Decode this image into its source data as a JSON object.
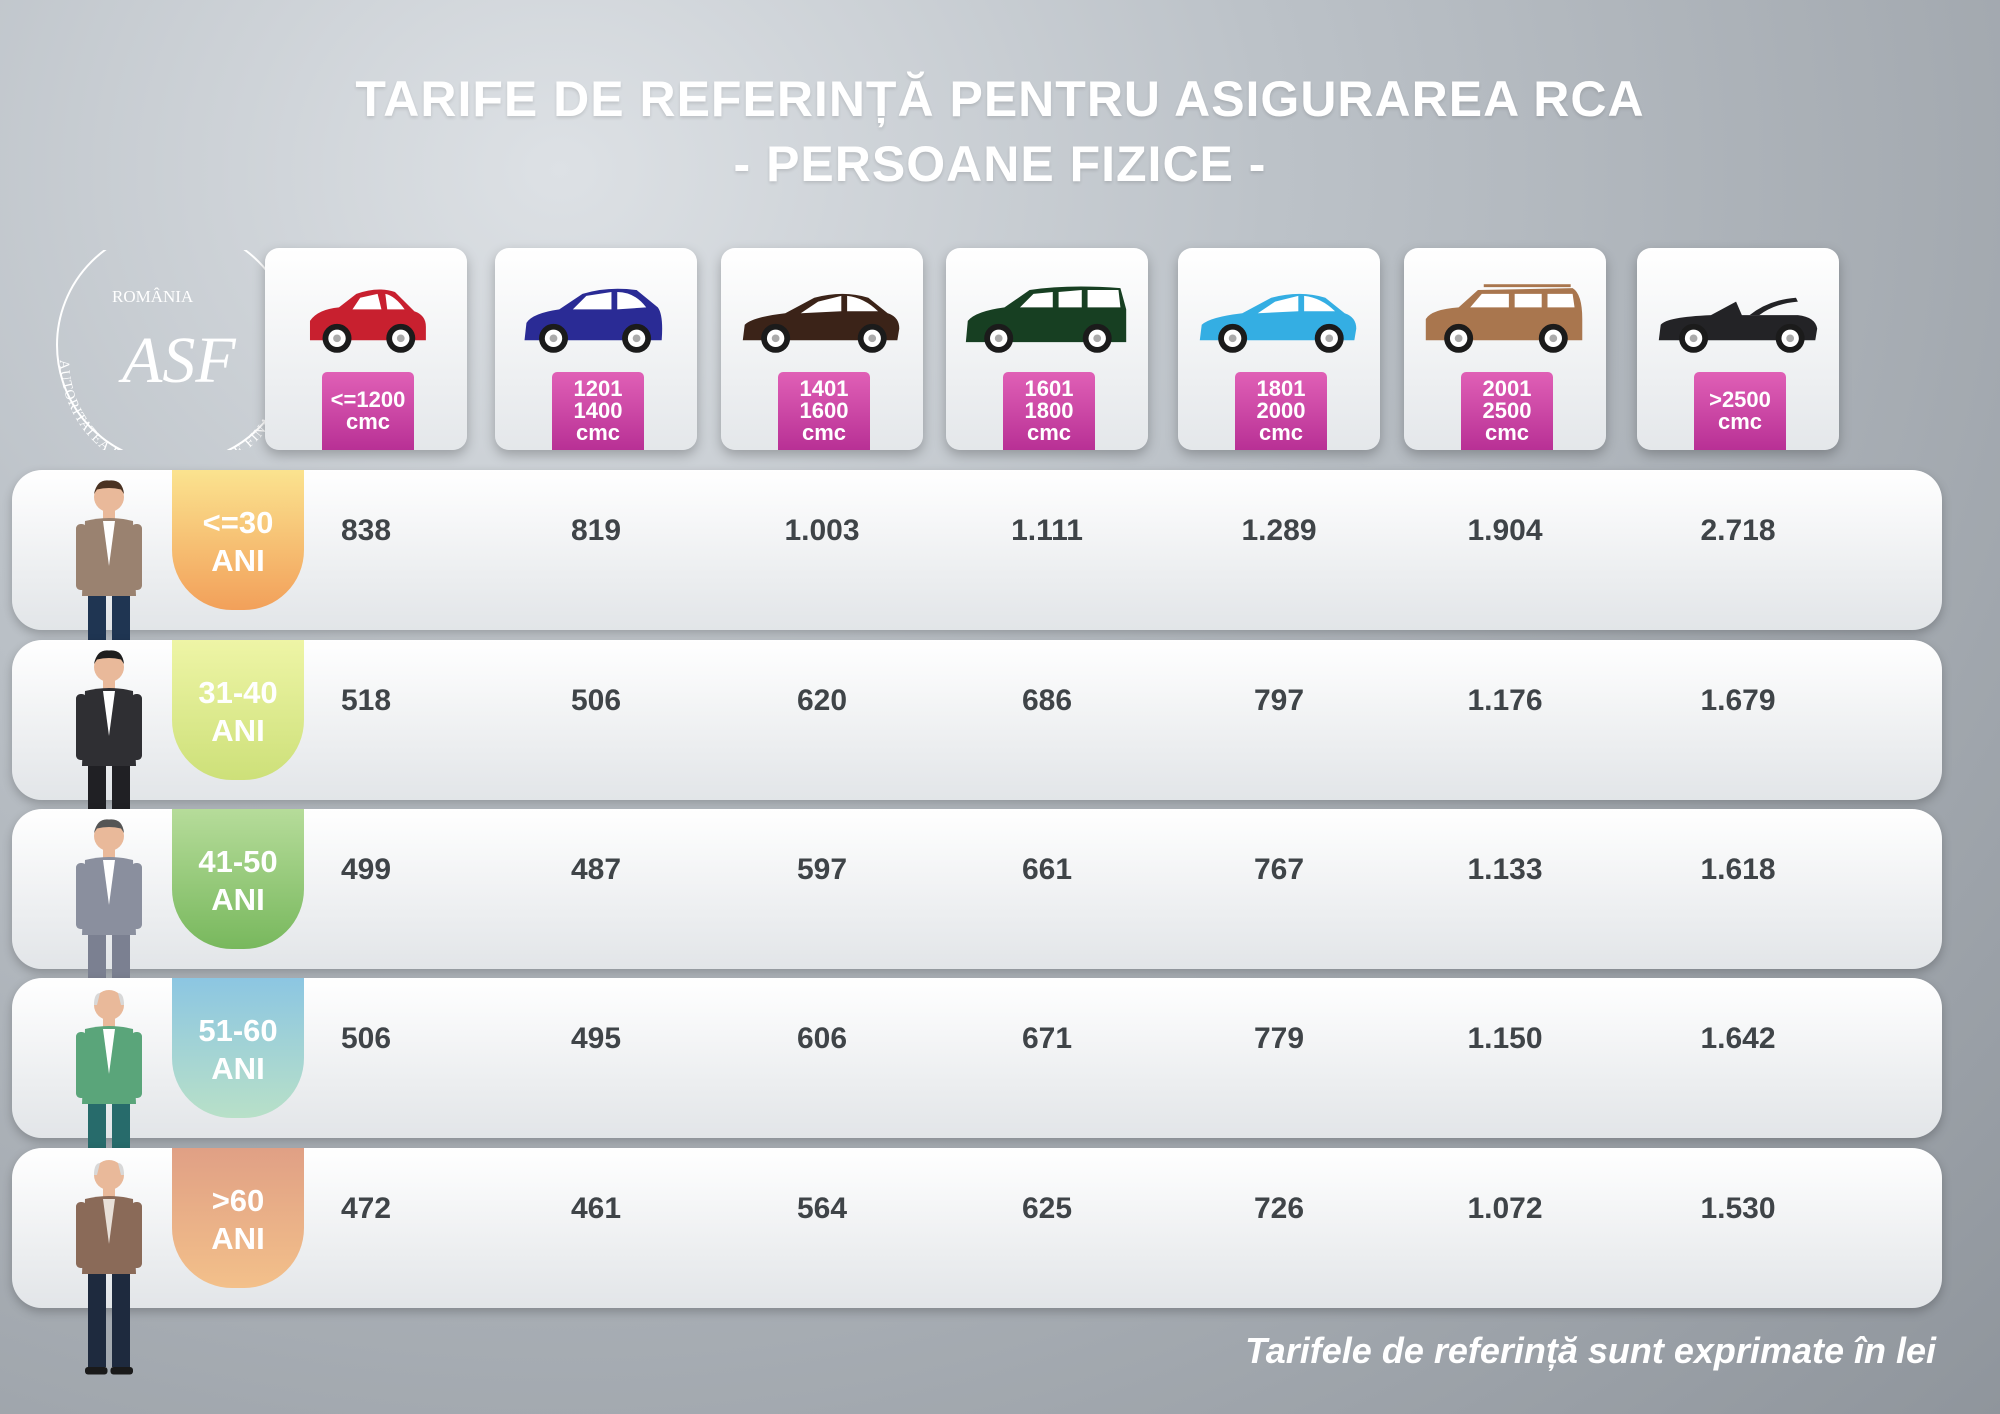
{
  "title": {
    "line1": "TARIFE DE REFERINȚĂ PENTRU ASIGURAREA RCA",
    "line2": "- PERSOANE FIZICE -"
  },
  "logo": {
    "top_text": "ROMÂNIA",
    "ring_text": "AUTORITATEA DE SUPRAVEGHERE FINANCIARĂ",
    "monogram": "ASF"
  },
  "chart_data": {
    "type": "table",
    "columns": [
      {
        "lines": [
          "<=1200",
          "cmc"
        ],
        "car_color": "#c8202f",
        "car_icon": "hatchback-small-icon"
      },
      {
        "lines": [
          "1201",
          "1400",
          "cmc"
        ],
        "car_color": "#2a2b95",
        "car_icon": "hatchback-icon"
      },
      {
        "lines": [
          "1401",
          "1600",
          "cmc"
        ],
        "car_color": "#3b2318",
        "car_icon": "sedan-icon"
      },
      {
        "lines": [
          "1601",
          "1800",
          "cmc"
        ],
        "car_color": "#173f22",
        "car_icon": "minivan-icon"
      },
      {
        "lines": [
          "1801",
          "2000",
          "cmc"
        ],
        "car_color": "#34aee3",
        "car_icon": "sedan-icon"
      },
      {
        "lines": [
          "2001",
          "2500",
          "cmc"
        ],
        "car_color": "#a9764e",
        "car_icon": "suv-icon"
      },
      {
        "lines": [
          ">2500",
          "cmc"
        ],
        "car_color": "#232326",
        "car_icon": "convertible-icon"
      }
    ],
    "rows": [
      {
        "age": [
          "<=30",
          "ANI"
        ],
        "values": [
          "838",
          "819",
          "1.003",
          "1.111",
          "1.289",
          "1.904",
          "2.718"
        ]
      },
      {
        "age": [
          "31-40",
          "ANI"
        ],
        "values": [
          "518",
          "506",
          "620",
          "686",
          "797",
          "1.176",
          "1.679"
        ]
      },
      {
        "age": [
          "41-50",
          "ANI"
        ],
        "values": [
          "499",
          "487",
          "597",
          "661",
          "767",
          "1.133",
          "1.618"
        ]
      },
      {
        "age": [
          "51-60",
          "ANI"
        ],
        "values": [
          "506",
          "495",
          "606",
          "671",
          "779",
          "1.150",
          "1.642"
        ]
      },
      {
        "age": [
          ">60",
          "ANI"
        ],
        "values": [
          "472",
          "461",
          "564",
          "625",
          "726",
          "1.072",
          "1.530"
        ]
      }
    ],
    "people": [
      {
        "icon": "young-man-icon",
        "jacket": "#9a8270",
        "pants": "#1f3552",
        "shirt": "#ffffff"
      },
      {
        "icon": "businessman-icon",
        "jacket": "#2f2f33",
        "pants": "#202024",
        "shirt": "#ffffff"
      },
      {
        "icon": "middle-aged-man-icon",
        "jacket": "#8a8f9e",
        "pants": "#7b8091",
        "shirt": "#ffffff"
      },
      {
        "icon": "older-man-icon",
        "jacket": "#5aa57a",
        "pants": "#276b6b",
        "shirt": "#ffffff"
      },
      {
        "icon": "senior-man-icon",
        "jacket": "#8a6a58",
        "pants": "#1e2a3e",
        "shirt": "#e8e0d8"
      }
    ]
  },
  "footnote": "Tarifele de referință sunt exprimate în lei"
}
